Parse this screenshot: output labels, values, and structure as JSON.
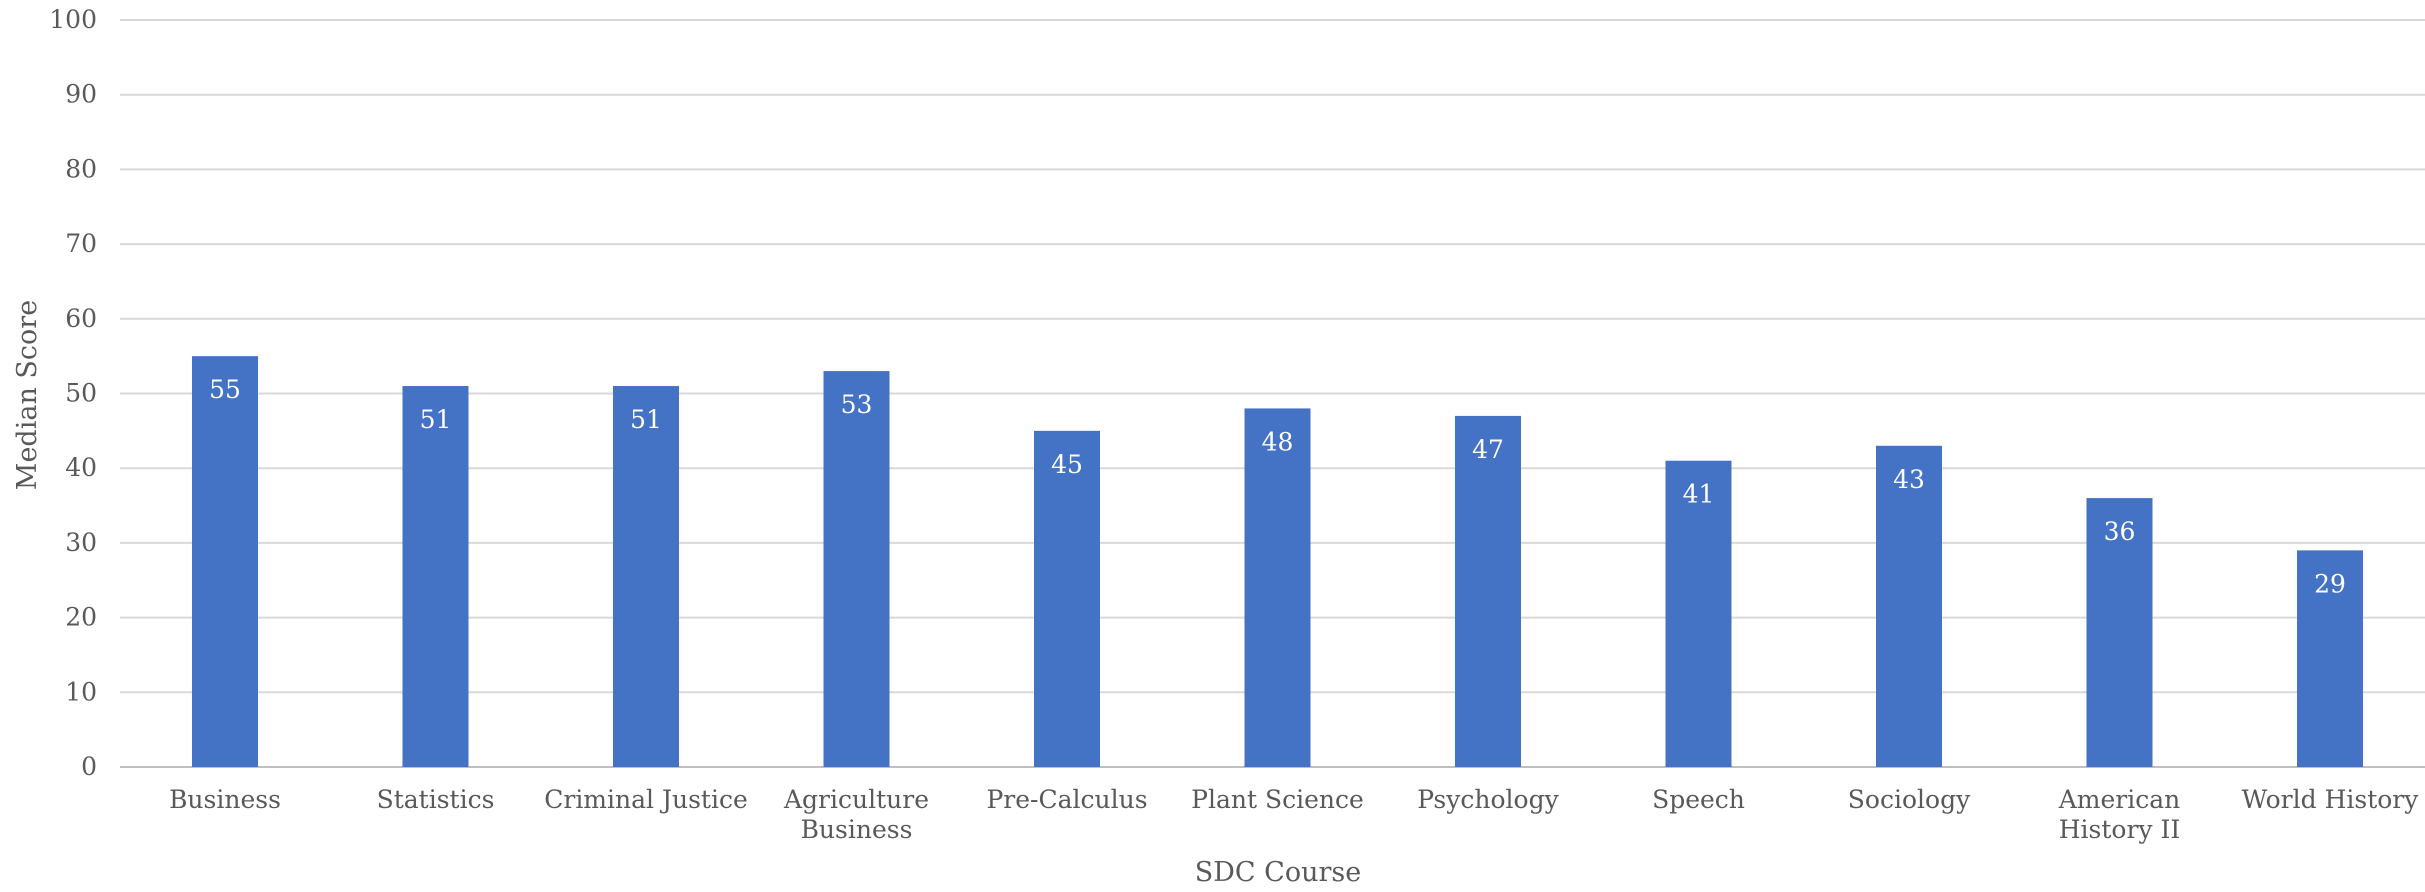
{
  "chart_data": {
    "type": "bar",
    "categories": [
      "Business",
      "Statistics",
      "Criminal Justice",
      "Agriculture Business",
      "Pre-Calculus",
      "Plant Science",
      "Psychology",
      "Speech",
      "Sociology",
      "American History II",
      "World History"
    ],
    "category_lines": [
      [
        "Business"
      ],
      [
        "Statistics"
      ],
      [
        "Criminal Justice"
      ],
      [
        "Agriculture",
        "Business"
      ],
      [
        "Pre-Calculus"
      ],
      [
        "Plant Science"
      ],
      [
        "Psychology"
      ],
      [
        "Speech"
      ],
      [
        "Sociology"
      ],
      [
        "American",
        "History II"
      ],
      [
        "World History"
      ]
    ],
    "values": [
      55,
      51,
      51,
      53,
      45,
      48,
      47,
      41,
      43,
      36,
      29
    ],
    "title": "",
    "xlabel": "SDC Course",
    "ylabel": "Median Score",
    "ylim": [
      0,
      100
    ],
    "yticks": [
      0,
      10,
      20,
      30,
      40,
      50,
      60,
      70,
      80,
      90,
      100
    ],
    "grid": true,
    "data_labels": true,
    "legend": "none",
    "bar_color": "#4472c4",
    "data_label_color": "#ffffff",
    "grid_color": "#d9d9d9",
    "text_color": "#595959"
  }
}
